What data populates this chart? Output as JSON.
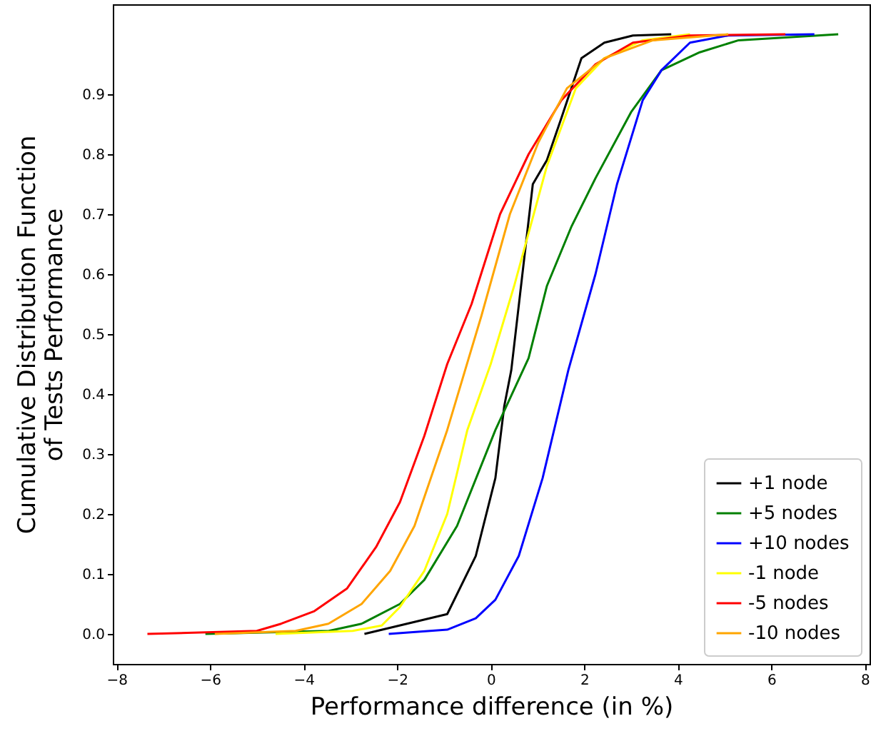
{
  "chart_data": {
    "type": "line",
    "xlabel": "Performance difference (in %)",
    "ylabel": "Cumulative Distribution Function\nof Tests Performance",
    "xlim": [
      -8.08,
      8.1
    ],
    "ylim": [
      -0.05,
      1.05
    ],
    "xticks": [
      -8,
      -6,
      -4,
      -2,
      0,
      2,
      4,
      6,
      8
    ],
    "yticks": [
      {
        "value": 0,
        "label": "0.0"
      },
      0.1,
      0.2,
      0.3,
      0.4,
      0.5,
      0.6,
      0.7,
      0.8,
      0.9
    ],
    "grid": false,
    "legend": "bottom right",
    "marker": "none",
    "line_style": "solid",
    "series": [
      {
        "name": "+1 node",
        "color": "#000000",
        "x": [
          -2.7,
          -0.93,
          -0.32,
          0.1,
          0.29,
          0.44,
          0.9,
          1.2,
          1.51,
          1.94,
          2.43,
          3.04,
          3.86
        ],
        "values": [
          0,
          0.033,
          0.13,
          0.26,
          0.38,
          0.44,
          0.75,
          0.79,
          0.86,
          0.96,
          0.986,
          0.998,
          1
        ]
      },
      {
        "name": "+5 nodes",
        "color": "#008000",
        "x": [
          -6.1,
          -3.46,
          -2.76,
          -1.94,
          -1.42,
          -0.72,
          0.1,
          0.81,
          1.2,
          1.73,
          2.24,
          3.0,
          3.65,
          4.47,
          5.3,
          7.43
        ],
        "values": [
          0,
          0.005,
          0.017,
          0.05,
          0.09,
          0.18,
          0.34,
          0.46,
          0.58,
          0.68,
          0.76,
          0.87,
          0.94,
          0.97,
          0.99,
          1
        ]
      },
      {
        "name": "+10 nodes",
        "color": "#0000ff",
        "x": [
          -2.18,
          -0.93,
          -0.32,
          0.1,
          0.6,
          1.11,
          1.66,
          2.24,
          2.7,
          3.25,
          3.65,
          4.26,
          5.08,
          6.92
        ],
        "values": [
          0,
          0.007,
          0.026,
          0.057,
          0.13,
          0.26,
          0.44,
          0.6,
          0.75,
          0.89,
          0.94,
          0.986,
          0.998,
          1
        ]
      },
      {
        "name": "-1 node",
        "color": "#ffff00",
        "x": [
          -4.6,
          -2.95,
          -2.33,
          -1.94,
          -1.42,
          -0.93,
          -0.5,
          0.0,
          0.5,
          1.2,
          1.82,
          2.43,
          3.25,
          4.26
        ],
        "values": [
          0,
          0.005,
          0.014,
          0.045,
          0.105,
          0.2,
          0.34,
          0.45,
          0.58,
          0.78,
          0.91,
          0.96,
          0.99,
          1
        ]
      },
      {
        "name": "-5 nodes",
        "color": "#ff0000",
        "x": [
          -7.34,
          -5.0,
          -4.48,
          -3.77,
          -3.07,
          -2.45,
          -1.94,
          -1.42,
          -0.93,
          -0.41,
          0.2,
          0.81,
          1.51,
          2.24,
          3.04,
          4.26,
          6.3
        ],
        "values": [
          0,
          0.005,
          0.017,
          0.038,
          0.076,
          0.145,
          0.22,
          0.33,
          0.45,
          0.55,
          0.7,
          0.8,
          0.89,
          0.95,
          0.986,
          0.998,
          1
        ]
      },
      {
        "name": "-10 nodes",
        "color": "#ffa500",
        "x": [
          -5.9,
          -4.17,
          -3.47,
          -2.76,
          -2.15,
          -1.63,
          -0.93,
          -0.47,
          -0.2,
          0.41,
          1.02,
          1.63,
          2.43,
          3.47,
          5.08
        ],
        "values": [
          0,
          0.005,
          0.017,
          0.05,
          0.105,
          0.18,
          0.34,
          0.46,
          0.53,
          0.7,
          0.82,
          0.91,
          0.96,
          0.99,
          1
        ]
      }
    ]
  }
}
